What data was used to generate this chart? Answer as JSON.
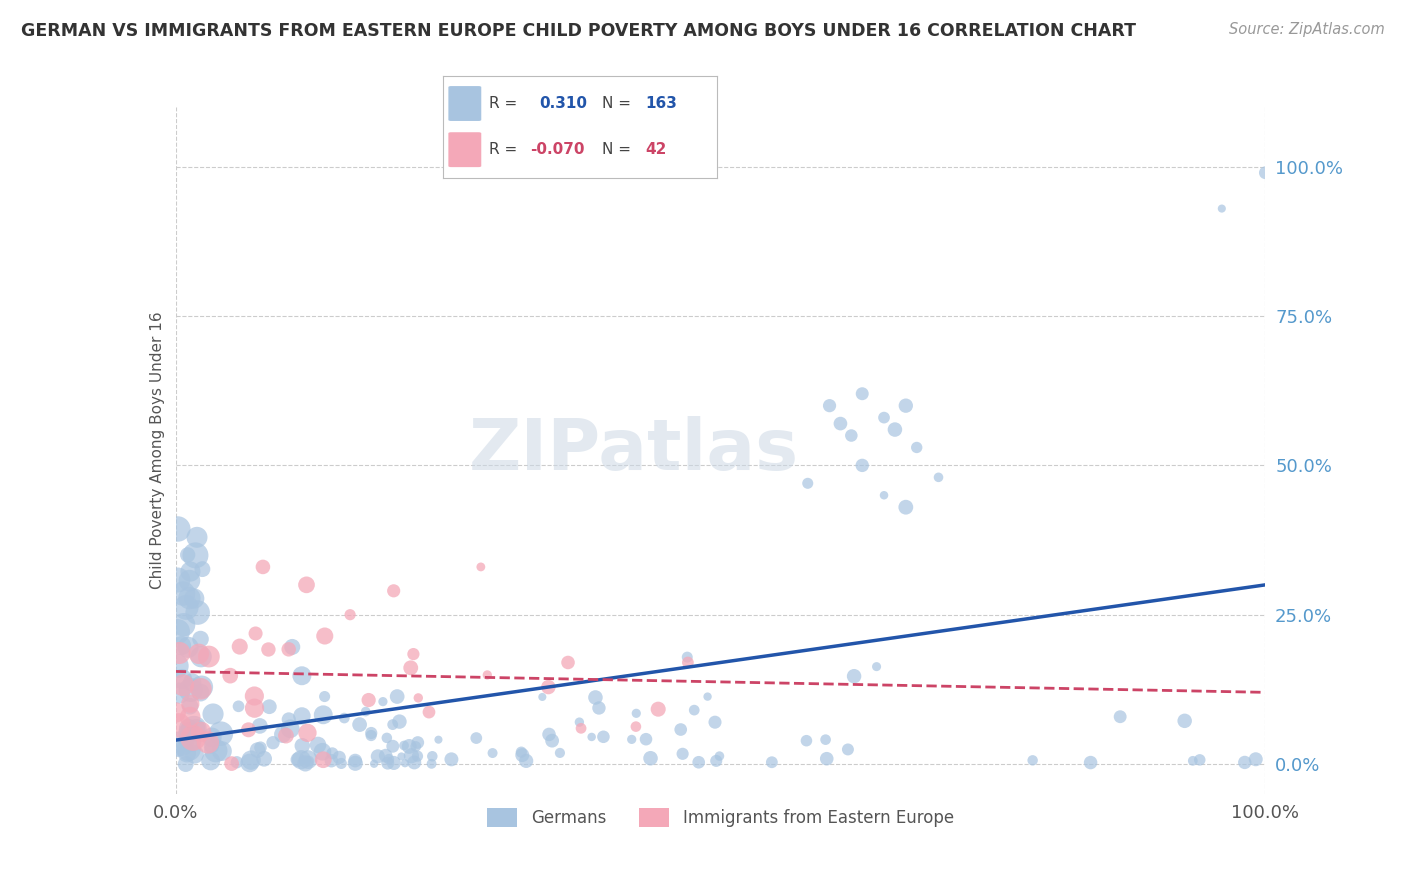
{
  "title": "GERMAN VS IMMIGRANTS FROM EASTERN EUROPE CHILD POVERTY AMONG BOYS UNDER 16 CORRELATION CHART",
  "source": "Source: ZipAtlas.com",
  "ylabel": "Child Poverty Among Boys Under 16",
  "xlim": [
    0,
    1.0
  ],
  "ylim": [
    -0.05,
    1.1
  ],
  "ytick_labels": [
    "0.0%",
    "25.0%",
    "50.0%",
    "75.0%",
    "100.0%"
  ],
  "ytick_vals": [
    0.0,
    0.25,
    0.5,
    0.75,
    1.0
  ],
  "xtick_labels": [
    "0.0%",
    "100.0%"
  ],
  "xtick_vals": [
    0.0,
    1.0
  ],
  "blue_R": 0.31,
  "blue_N": 163,
  "pink_R": -0.07,
  "pink_N": 42,
  "blue_color": "#a8c4e0",
  "pink_color": "#f4a8b8",
  "blue_line_color": "#2255aa",
  "pink_line_color": "#cc4466",
  "legend_labels": [
    "Germans",
    "Immigrants from Eastern Europe"
  ],
  "watermark": "ZIPatlas",
  "background_color": "#ffffff",
  "grid_color": "#cccccc",
  "title_color": "#333333",
  "axis_label_color": "#555555",
  "right_tick_color": "#5599cc"
}
